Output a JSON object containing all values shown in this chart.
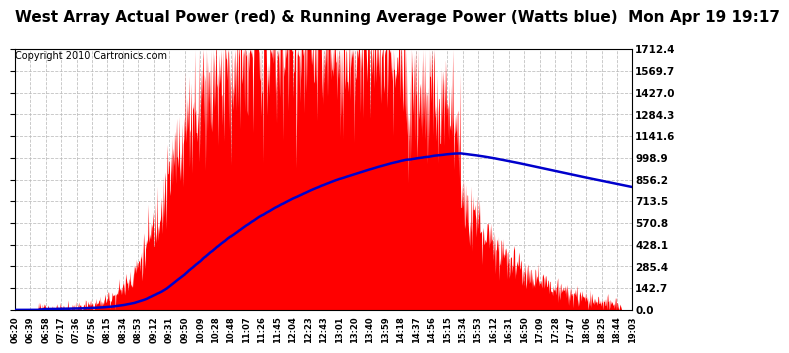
{
  "title": "West Array Actual Power (red) & Running Average Power (Watts blue)  Mon Apr 19 19:17",
  "copyright": "Copyright 2010 Cartronics.com",
  "ymax": 1712.4,
  "ymin": 0.0,
  "yticks": [
    0.0,
    142.7,
    285.4,
    428.1,
    570.8,
    713.5,
    856.2,
    998.9,
    1141.6,
    1284.3,
    1427.0,
    1569.7,
    1712.4
  ],
  "bg_color": "#ffffff",
  "plot_bg_color": "#ffffff",
  "grid_color": "#bbbbbb",
  "actual_color": "#ff0000",
  "avg_color": "#0000cc",
  "title_fontsize": 11,
  "copyright_fontsize": 7,
  "xtick_labels": [
    "06:20",
    "06:39",
    "06:58",
    "07:17",
    "07:36",
    "07:56",
    "08:15",
    "08:34",
    "08:53",
    "09:12",
    "09:31",
    "09:50",
    "10:09",
    "10:28",
    "10:48",
    "11:07",
    "11:26",
    "11:45",
    "12:04",
    "12:23",
    "12:43",
    "13:01",
    "13:20",
    "13:40",
    "13:59",
    "14:18",
    "14:37",
    "14:56",
    "15:15",
    "15:34",
    "15:53",
    "16:12",
    "16:31",
    "16:50",
    "17:09",
    "17:28",
    "17:47",
    "18:06",
    "18:25",
    "18:44",
    "19:03"
  ]
}
